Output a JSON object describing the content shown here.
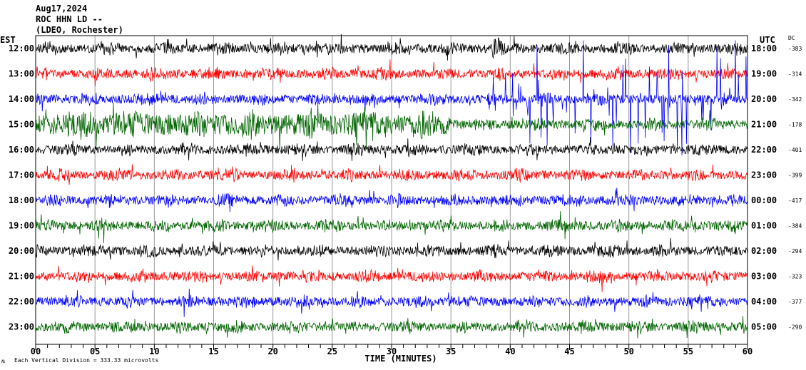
{
  "header": {
    "date": "Aug17,2024",
    "station": "ROC HHN LD --",
    "network": "(LDEO, Rochester)"
  },
  "left_axis_title": "EST",
  "right_axis_title": "UTC",
  "dc_title": "DC",
  "footer": {
    "scale_note": "Each Vertical Division =  333.33 microvolts",
    "corner_mark": "ʍ"
  },
  "chart_data": {
    "type": "line",
    "title": "ROC HHN LD -- (LDEO, Rochester) Aug17,2024",
    "xlabel": "TIME (MINUTES)",
    "xlim": [
      0,
      60
    ],
    "x_ticks": [
      "00",
      "05",
      "10",
      "15",
      "20",
      "25",
      "30",
      "35",
      "40",
      "45",
      "50",
      "55",
      "60"
    ],
    "minor_tick_step": 1,
    "grid": "vertical every 5 minutes",
    "colors": [
      "#000000",
      "#ff0000",
      "#0000ff",
      "#006400"
    ],
    "rows": [
      {
        "est": "12:00",
        "utc": "18:00",
        "dc": "-383",
        "color": "#000000"
      },
      {
        "est": "13:00",
        "utc": "19:00",
        "dc": "-314",
        "color": "#ff0000"
      },
      {
        "est": "14:00",
        "utc": "20:00",
        "dc": "-342",
        "color": "#0000ff"
      },
      {
        "est": "15:00",
        "utc": "21:00",
        "dc": "-178",
        "color": "#006400"
      },
      {
        "est": "16:00",
        "utc": "22:00",
        "dc": "-401",
        "color": "#000000"
      },
      {
        "est": "17:00",
        "utc": "23:00",
        "dc": "-399",
        "color": "#ff0000"
      },
      {
        "est": "18:00",
        "utc": "00:00",
        "dc": "-417",
        "color": "#0000ff"
      },
      {
        "est": "19:00",
        "utc": "01:00",
        "dc": "-384",
        "color": "#006400"
      },
      {
        "est": "20:00",
        "utc": "02:00",
        "dc": "-294",
        "color": "#000000"
      },
      {
        "est": "21:00",
        "utc": "03:00",
        "dc": "-323",
        "color": "#ff0000"
      },
      {
        "est": "22:00",
        "utc": "04:00",
        "dc": "-377",
        "color": "#0000ff"
      },
      {
        "est": "23:00",
        "utc": "05:00",
        "dc": "-290",
        "color": "#006400"
      }
    ]
  }
}
